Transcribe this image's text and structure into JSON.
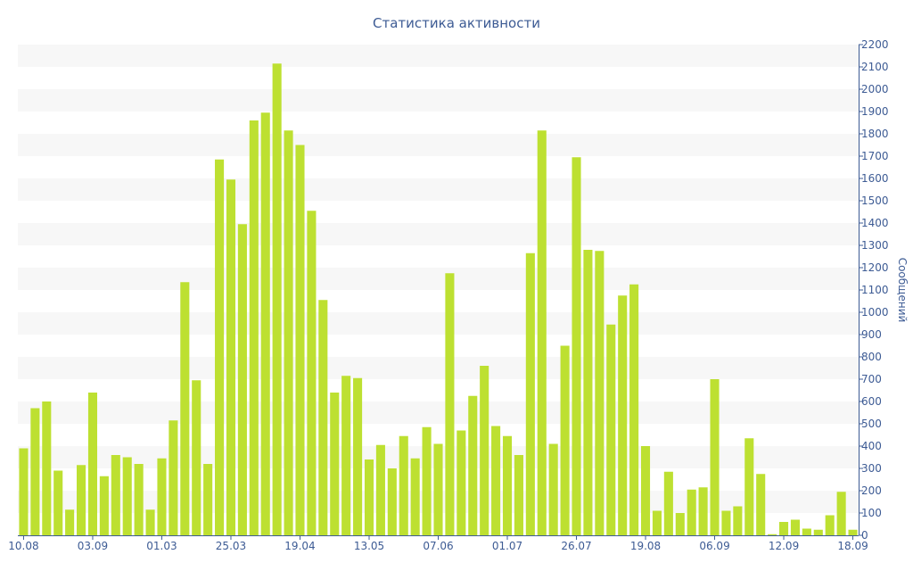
{
  "chart_data": {
    "type": "bar",
    "title": "Статистика активности",
    "ylabel": "Сообщений",
    "xlabel": "",
    "ylim": [
      0,
      2200
    ],
    "ytick_step": 100,
    "yaxis_side": "right",
    "grid": "alternating-bands",
    "bar_color": "#bde031",
    "axis_color": "#3d5b94",
    "band_color": "#f7f7f7",
    "values": [
      390,
      570,
      600,
      290,
      115,
      315,
      640,
      265,
      360,
      350,
      320,
      115,
      345,
      515,
      1135,
      695,
      320,
      1685,
      1595,
      1395,
      1860,
      1895,
      2115,
      1815,
      1750,
      1455,
      1055,
      640,
      715,
      705,
      340,
      405,
      300,
      445,
      345,
      485,
      410,
      1175,
      470,
      625,
      760,
      490,
      445,
      360,
      1265,
      1815,
      410,
      850,
      1695,
      1280,
      1275,
      945,
      1075,
      1125,
      400,
      110,
      285,
      100,
      205,
      215,
      700,
      110,
      130,
      435,
      275,
      5,
      60,
      70,
      30,
      25,
      90,
      195,
      25
    ],
    "x_ticks": [
      {
        "index": 0,
        "label": "10.08"
      },
      {
        "index": 6,
        "label": "03.09"
      },
      {
        "index": 12,
        "label": "01.03"
      },
      {
        "index": 18,
        "label": "25.03"
      },
      {
        "index": 24,
        "label": "19.04"
      },
      {
        "index": 30,
        "label": "13.05"
      },
      {
        "index": 36,
        "label": "07.06"
      },
      {
        "index": 42,
        "label": "01.07"
      },
      {
        "index": 48,
        "label": "26.07"
      },
      {
        "index": 54,
        "label": "19.08"
      },
      {
        "index": 60,
        "label": "06.09"
      },
      {
        "index": 66,
        "label": "12.09"
      },
      {
        "index": 72,
        "label": "18.09"
      }
    ]
  }
}
